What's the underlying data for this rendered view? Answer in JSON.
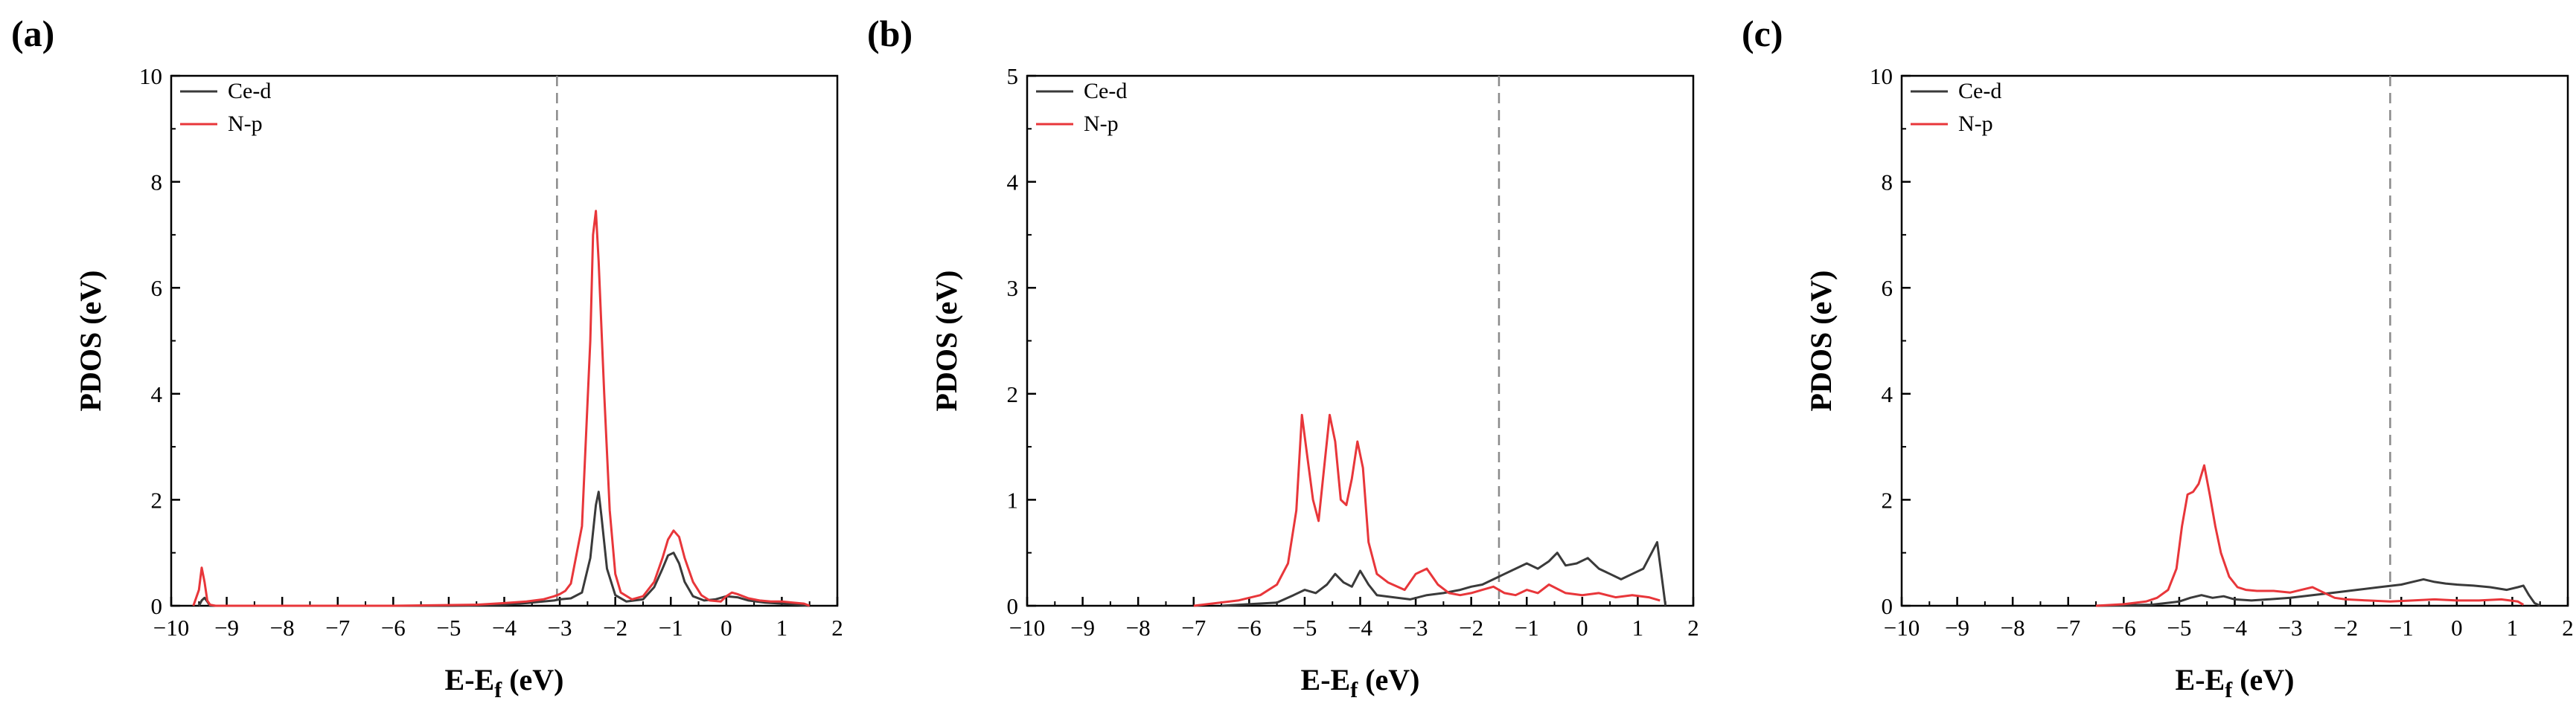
{
  "colors": {
    "ce_d": "#3a3a3a",
    "n_p": "#e8363a",
    "fermi": "#8a8a8a",
    "axis": "#000000"
  },
  "chart_data": [
    {
      "type": "line",
      "panel_label": "(a)",
      "xlabel_main": "E-E",
      "xlabel_sub": "f",
      "xlabel_unit": "(eV)",
      "ylabel": "PDOS (eV)",
      "xlim": [
        -10,
        2
      ],
      "ylim": [
        0,
        10
      ],
      "xticks": [
        -10,
        -9,
        -8,
        -7,
        -6,
        -5,
        -4,
        -3,
        -2,
        -1,
        0,
        1,
        2
      ],
      "yticks": [
        0,
        2,
        4,
        6,
        8,
        10
      ],
      "xtick_labels": [
        "−10",
        "−9",
        "−8",
        "−7",
        "−6",
        "−5",
        "−4",
        "−3",
        "−2",
        "−1",
        "0",
        "1",
        "2"
      ],
      "ytick_labels": [
        "0",
        "2",
        "4",
        "6",
        "8",
        "10"
      ],
      "fermi_level": -3.05,
      "series": [
        {
          "name": "Ce-d",
          "color_key": "ce_d",
          "x": [
            -9.5,
            -9.45,
            -9.4,
            -9.35,
            -9.3,
            -5,
            -4.0,
            -3.6,
            -3.3,
            -3.1,
            -3.0,
            -2.8,
            -2.6,
            -2.45,
            -2.35,
            -2.3,
            -2.25,
            -2.15,
            -2.0,
            -1.8,
            -1.5,
            -1.3,
            -1.15,
            -1.05,
            -0.95,
            -0.85,
            -0.75,
            -0.6,
            -0.4,
            -0.2,
            0.0,
            0.2,
            0.4,
            0.7,
            1.0,
            1.3,
            1.5
          ],
          "y": [
            0.0,
            0.1,
            0.15,
            0.08,
            0.0,
            0.0,
            0.02,
            0.05,
            0.08,
            0.1,
            0.12,
            0.14,
            0.25,
            0.9,
            1.9,
            2.15,
            1.7,
            0.7,
            0.2,
            0.08,
            0.12,
            0.35,
            0.7,
            0.95,
            1.0,
            0.8,
            0.45,
            0.18,
            0.1,
            0.12,
            0.18,
            0.16,
            0.1,
            0.06,
            0.04,
            0.02,
            0.0
          ]
        },
        {
          "name": "N-p",
          "color_key": "n_p",
          "x": [
            -9.6,
            -9.5,
            -9.45,
            -9.4,
            -9.35,
            -9.3,
            -9.2,
            -8.0,
            -6.0,
            -4.5,
            -4.0,
            -3.6,
            -3.3,
            -3.1,
            -3.0,
            -2.9,
            -2.8,
            -2.6,
            -2.45,
            -2.4,
            -2.35,
            -2.3,
            -2.2,
            -2.1,
            -2.0,
            -1.9,
            -1.7,
            -1.5,
            -1.3,
            -1.15,
            -1.05,
            -0.95,
            -0.85,
            -0.75,
            -0.6,
            -0.45,
            -0.3,
            -0.1,
            0.0,
            0.1,
            0.2,
            0.4,
            0.6,
            0.8,
            1.0,
            1.2,
            1.4,
            1.5
          ],
          "y": [
            0.0,
            0.3,
            0.72,
            0.45,
            0.1,
            0.02,
            0.0,
            0.0,
            0.0,
            0.02,
            0.05,
            0.08,
            0.12,
            0.18,
            0.22,
            0.28,
            0.42,
            1.5,
            5.0,
            7.0,
            7.45,
            6.5,
            4.0,
            1.8,
            0.6,
            0.25,
            0.12,
            0.18,
            0.45,
            0.9,
            1.25,
            1.42,
            1.3,
            0.9,
            0.45,
            0.2,
            0.1,
            0.08,
            0.18,
            0.25,
            0.22,
            0.14,
            0.1,
            0.08,
            0.08,
            0.06,
            0.04,
            0.0
          ]
        }
      ]
    },
    {
      "type": "line",
      "panel_label": "(b)",
      "xlabel_main": "E-E",
      "xlabel_sub": "f",
      "xlabel_unit": "(eV)",
      "ylabel": "PDOS (eV)",
      "xlim": [
        -10,
        2
      ],
      "ylim": [
        0,
        5
      ],
      "xticks": [
        -10,
        -9,
        -8,
        -7,
        -6,
        -5,
        -4,
        -3,
        -2,
        -1,
        0,
        1,
        2
      ],
      "yticks": [
        0,
        1,
        2,
        3,
        4,
        5
      ],
      "xtick_labels": [
        "−10",
        "−9",
        "−8",
        "−7",
        "−6",
        "−5",
        "−4",
        "−3",
        "−2",
        "−1",
        "0",
        "1",
        "2"
      ],
      "ytick_labels": [
        "0",
        "1",
        "2",
        "3",
        "4",
        "5"
      ],
      "fermi_level": -1.5,
      "series": [
        {
          "name": "Ce-d",
          "color_key": "ce_d",
          "x": [
            -6.5,
            -5.5,
            -5.2,
            -5.0,
            -4.8,
            -4.6,
            -4.45,
            -4.3,
            -4.15,
            -4.0,
            -3.85,
            -3.7,
            -3.4,
            -3.1,
            -2.8,
            -2.5,
            -2.2,
            -2.0,
            -1.8,
            -1.6,
            -1.4,
            -1.2,
            -1.0,
            -0.8,
            -0.6,
            -0.45,
            -0.3,
            -0.1,
            0.1,
            0.3,
            0.5,
            0.7,
            0.9,
            1.1,
            1.25,
            1.35,
            1.45,
            1.5
          ],
          "y": [
            0.0,
            0.03,
            0.1,
            0.15,
            0.12,
            0.2,
            0.3,
            0.22,
            0.18,
            0.33,
            0.2,
            0.1,
            0.08,
            0.06,
            0.1,
            0.12,
            0.15,
            0.18,
            0.2,
            0.25,
            0.3,
            0.35,
            0.4,
            0.35,
            0.42,
            0.5,
            0.38,
            0.4,
            0.45,
            0.35,
            0.3,
            0.25,
            0.3,
            0.35,
            0.5,
            0.6,
            0.2,
            0.0
          ]
        },
        {
          "name": "N-p",
          "color_key": "n_p",
          "x": [
            -7.0,
            -6.2,
            -5.8,
            -5.5,
            -5.3,
            -5.15,
            -5.05,
            -4.95,
            -4.85,
            -4.75,
            -4.65,
            -4.55,
            -4.45,
            -4.35,
            -4.25,
            -4.15,
            -4.05,
            -3.95,
            -3.85,
            -3.7,
            -3.5,
            -3.2,
            -3.0,
            -2.8,
            -2.6,
            -2.4,
            -2.2,
            -2.0,
            -1.8,
            -1.6,
            -1.4,
            -1.2,
            -1.0,
            -0.8,
            -0.6,
            -0.3,
            0.0,
            0.3,
            0.6,
            0.9,
            1.2,
            1.4
          ],
          "y": [
            0.0,
            0.05,
            0.1,
            0.2,
            0.4,
            0.9,
            1.8,
            1.4,
            1.0,
            0.8,
            1.3,
            1.8,
            1.55,
            1.0,
            0.95,
            1.2,
            1.55,
            1.3,
            0.6,
            0.3,
            0.22,
            0.15,
            0.3,
            0.35,
            0.2,
            0.12,
            0.1,
            0.12,
            0.15,
            0.18,
            0.12,
            0.1,
            0.15,
            0.12,
            0.2,
            0.12,
            0.1,
            0.12,
            0.08,
            0.1,
            0.08,
            0.05
          ]
        }
      ]
    },
    {
      "type": "line",
      "panel_label": "(c)",
      "xlabel_main": "E-E",
      "xlabel_sub": "f",
      "xlabel_unit": "(eV)",
      "ylabel": "PDOS (eV)",
      "xlim": [
        -10,
        2
      ],
      "ylim": [
        0,
        10
      ],
      "xticks": [
        -10,
        -9,
        -8,
        -7,
        -6,
        -5,
        -4,
        -3,
        -2,
        -1,
        0,
        1,
        2
      ],
      "yticks": [
        0,
        2,
        4,
        6,
        8,
        10
      ],
      "xtick_labels": [
        "−10",
        "−9",
        "−8",
        "−7",
        "−6",
        "−5",
        "−4",
        "−3",
        "−2",
        "−1",
        "0",
        "1",
        "2"
      ],
      "ytick_labels": [
        "0",
        "2",
        "4",
        "6",
        "8",
        "10"
      ],
      "fermi_level": -1.2,
      "series": [
        {
          "name": "Ce-d",
          "color_key": "ce_d",
          "x": [
            -6.5,
            -5.5,
            -5.0,
            -4.8,
            -4.6,
            -4.4,
            -4.2,
            -4.0,
            -3.7,
            -3.4,
            -3.0,
            -2.6,
            -2.2,
            -1.8,
            -1.4,
            -1.0,
            -0.8,
            -0.6,
            -0.4,
            -0.2,
            0.0,
            0.3,
            0.6,
            0.9,
            1.1,
            1.2,
            1.3,
            1.4,
            1.5
          ],
          "y": [
            0.0,
            0.02,
            0.08,
            0.15,
            0.2,
            0.15,
            0.18,
            0.12,
            0.1,
            0.12,
            0.15,
            0.2,
            0.25,
            0.3,
            0.35,
            0.4,
            0.45,
            0.5,
            0.45,
            0.42,
            0.4,
            0.38,
            0.35,
            0.3,
            0.35,
            0.38,
            0.2,
            0.05,
            0.0
          ]
        },
        {
          "name": "N-p",
          "color_key": "n_p",
          "x": [
            -6.5,
            -6.0,
            -5.6,
            -5.4,
            -5.2,
            -5.05,
            -4.95,
            -4.85,
            -4.75,
            -4.65,
            -4.55,
            -4.45,
            -4.35,
            -4.25,
            -4.1,
            -3.95,
            -3.8,
            -3.6,
            -3.3,
            -3.0,
            -2.8,
            -2.6,
            -2.4,
            -2.2,
            -2.0,
            -1.6,
            -1.2,
            -0.8,
            -0.4,
            0.0,
            0.4,
            0.8,
            1.1,
            1.2
          ],
          "y": [
            0.0,
            0.03,
            0.08,
            0.15,
            0.3,
            0.7,
            1.5,
            2.1,
            2.15,
            2.3,
            2.65,
            2.1,
            1.5,
            1.0,
            0.55,
            0.35,
            0.3,
            0.28,
            0.28,
            0.25,
            0.3,
            0.35,
            0.25,
            0.15,
            0.12,
            0.1,
            0.08,
            0.1,
            0.12,
            0.1,
            0.1,
            0.12,
            0.08,
            0.02
          ]
        }
      ]
    }
  ]
}
